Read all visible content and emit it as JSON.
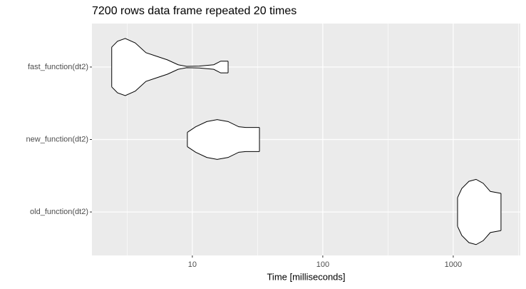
{
  "chart_data": {
    "type": "violin",
    "title": "7200 rows data frame repeated 20 times",
    "x_label": "Time [milliseconds]",
    "categories": [
      "fast_function(dt2)",
      "new_function(dt2)",
      "old_function(dt2)"
    ],
    "log_x": true,
    "grid": true,
    "xlim": [
      1.7,
      3266
    ],
    "xticks": [
      10,
      100,
      1000
    ],
    "xminorticks": [
      3.162,
      31.62,
      316.2,
      3162
    ],
    "fill": "#ffffff",
    "outline": "#000000",
    "series": [
      {
        "x": [
          2.41,
          2.67,
          3.06,
          3.65,
          4.41,
          5.33,
          6.44,
          7.78,
          9.04,
          11.3,
          14.6,
          16.5,
          18.8
        ],
        "density": [
          0.61,
          0.79,
          0.875,
          0.74,
          0.44,
          0.33,
          0.22,
          0.07,
          0.02,
          0.03,
          0.07,
          0.18,
          0.18
        ]
      },
      {
        "x": [
          9.16,
          10.6,
          12.9,
          15.5,
          18.8,
          22.7,
          25.7,
          32.7
        ],
        "density": [
          0.22,
          0.39,
          0.55,
          0.61,
          0.55,
          0.39,
          0.37,
          0.37
        ]
      },
      {
        "x": [
          1079,
          1163,
          1319,
          1496,
          1696,
          1924,
          2323
        ],
        "density": [
          0.44,
          0.72,
          0.94,
          1.0,
          0.88,
          0.63,
          0.57
        ]
      }
    ]
  }
}
